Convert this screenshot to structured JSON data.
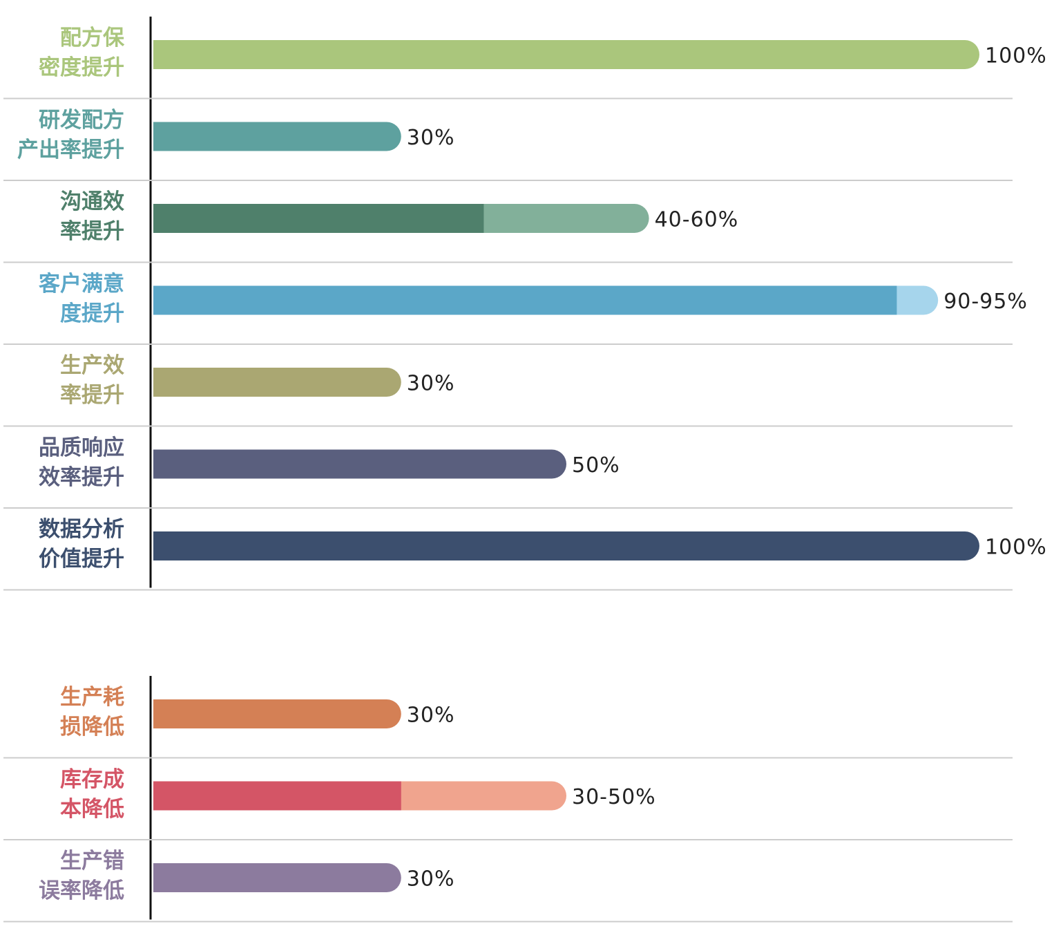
{
  "chart_data": [
    {
      "type": "bar",
      "orientation": "horizontal",
      "xlim": [
        0,
        100
      ],
      "categories": [
        "配方保\n密度提升",
        "研发配方\n产出率提升",
        "沟通效\n率提升",
        "客户满意\n度提升",
        "生产效\n率提升",
        "品质响应\n效率提升",
        "数据分析\n价值提升"
      ],
      "values": [
        100,
        30,
        40,
        90,
        30,
        50,
        100
      ],
      "range_high": [
        null,
        null,
        60,
        95,
        null,
        null,
        null
      ],
      "value_labels": [
        "100%",
        "30%",
        "40-60%",
        "90-95%",
        "30%",
        "50%",
        "100%"
      ],
      "colors": [
        "#aac67c",
        "#5ea19f",
        "#4f806b",
        "#5ba7c8",
        "#aaa772",
        "#5a5f7e",
        "#3c4f6e"
      ],
      "range_colors": [
        null,
        null,
        "#82b09a",
        "#a6d5ec",
        null,
        null,
        null
      ]
    },
    {
      "type": "bar",
      "orientation": "horizontal",
      "xlim": [
        0,
        100
      ],
      "categories": [
        "生产耗\n损降低",
        "库存成\n本降低",
        "生产错\n误率降低"
      ],
      "values": [
        30,
        30,
        30
      ],
      "range_high": [
        null,
        50,
        null
      ],
      "value_labels": [
        "30%",
        "30-50%",
        "30%"
      ],
      "colors": [
        "#d48055",
        "#d45566",
        "#8c7b9e"
      ],
      "range_colors": [
        null,
        "#f0a48e",
        null
      ]
    }
  ]
}
